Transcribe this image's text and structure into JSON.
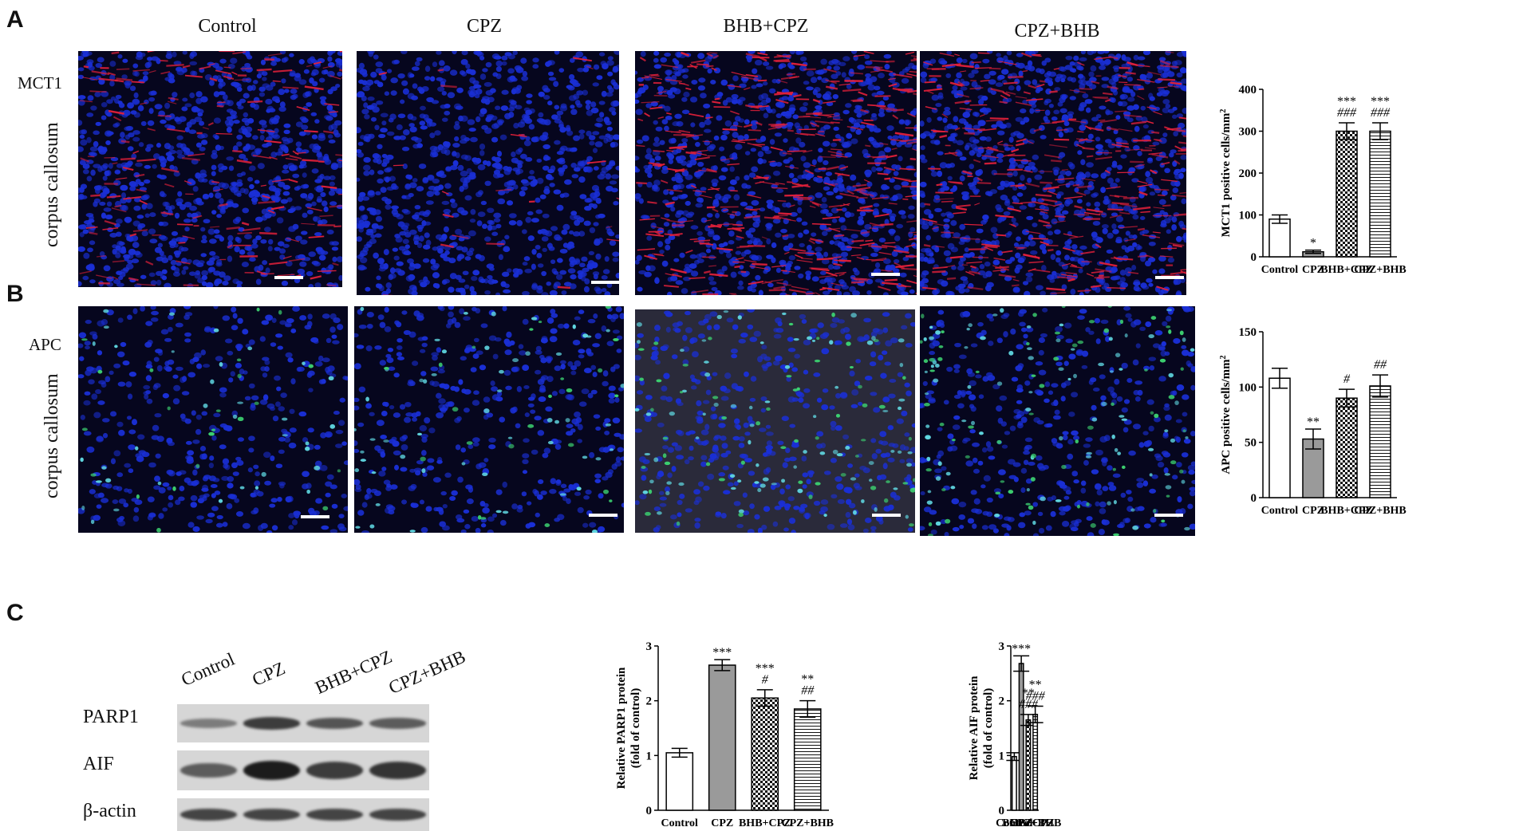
{
  "panel_letters": {
    "a": "A",
    "b": "B",
    "c": "C"
  },
  "columns": [
    "Control",
    "CPZ",
    "BHB+CPZ",
    "CPZ+BHB"
  ],
  "rows": {
    "a": {
      "marker": "MCT1",
      "region": "corpus callosum"
    },
    "b": {
      "marker": "APC",
      "region": "corpus callosum"
    }
  },
  "western_blot": {
    "lanes": [
      "Control",
      "CPZ",
      "BHB+CPZ",
      "CPZ+BHB"
    ],
    "bands": [
      "PARP1",
      "AIF",
      "β-actin"
    ],
    "intensity": {
      "PARP1": [
        0.35,
        0.75,
        0.6,
        0.55
      ],
      "AIF": [
        0.55,
        0.95,
        0.75,
        0.8
      ],
      "β-actin": [
        0.7,
        0.7,
        0.7,
        0.7
      ]
    }
  },
  "colors": {
    "nuclei": "#1a2fd6",
    "mct1_signal": "#e0203a",
    "apc_signal": "#3cd070",
    "background": "#06061e"
  },
  "chart_data": [
    {
      "type": "bar",
      "panel": "A",
      "categories": [
        "Control",
        "CPZ",
        "BHB+CPZ",
        "CPZ+BHB"
      ],
      "values": [
        90,
        12,
        300,
        300
      ],
      "errors": [
        10,
        4,
        20,
        20
      ],
      "fills": [
        "white",
        "gray",
        "checker",
        "hlines"
      ],
      "annotations": [
        [
          "",
          ""
        ],
        [
          "*",
          ""
        ],
        [
          "***",
          "###"
        ],
        [
          "***",
          "###"
        ]
      ],
      "ylabel": "MCT1 positive cells/mm",
      "ylabel_sup": "2",
      "ylim": [
        0,
        400
      ],
      "yticks": [
        0,
        100,
        200,
        300,
        400
      ]
    },
    {
      "type": "bar",
      "panel": "B",
      "categories": [
        "Control",
        "CPZ",
        "BHB+CPZ",
        "CPZ+BHB"
      ],
      "values": [
        108,
        53,
        90,
        101
      ],
      "errors": [
        9,
        9,
        8,
        10
      ],
      "fills": [
        "white",
        "gray",
        "checker",
        "hlines"
      ],
      "annotations": [
        [
          "",
          ""
        ],
        [
          "**",
          ""
        ],
        [
          "",
          "#"
        ],
        [
          "",
          "##"
        ]
      ],
      "ylabel": "APC positive cells/mm",
      "ylabel_sup": "2",
      "ylim": [
        0,
        150
      ],
      "yticks": [
        0,
        50,
        100,
        150
      ]
    },
    {
      "type": "bar",
      "panel": "C",
      "categories": [
        "Control",
        "CPZ",
        "BHB+CPZ",
        "CPZ+BHB"
      ],
      "values": [
        1.05,
        2.65,
        2.05,
        1.85
      ],
      "errors": [
        0.08,
        0.1,
        0.15,
        0.15
      ],
      "fills": [
        "white",
        "gray",
        "checker",
        "hlines"
      ],
      "annotations": [
        [
          "",
          ""
        ],
        [
          "***",
          ""
        ],
        [
          "***",
          "#"
        ],
        [
          "**",
          "##"
        ]
      ],
      "ylabel": "Relative PARP1 protein",
      "ylabel2": "(fold of control)",
      "ylim": [
        0,
        3
      ],
      "yticks": [
        0,
        1,
        2,
        3
      ]
    },
    {
      "type": "bar",
      "panel": "C",
      "categories": [
        "Control",
        "CPZ",
        "BHB+CPZ",
        "CPZ+BHB"
      ],
      "values": [
        0.98,
        2.68,
        1.65,
        1.75
      ],
      "errors": [
        0.07,
        0.14,
        0.1,
        0.15
      ],
      "fills": [
        "white",
        "gray",
        "checker",
        "hlines"
      ],
      "annotations": [
        [
          "",
          ""
        ],
        [
          "***",
          ""
        ],
        [
          "**",
          "###"
        ],
        [
          "**",
          "###"
        ]
      ],
      "ylabel": "Relative AIF protein",
      "ylabel2": "(fold of control)",
      "ylim": [
        0,
        3
      ],
      "yticks": [
        0,
        1,
        2,
        3
      ]
    }
  ]
}
